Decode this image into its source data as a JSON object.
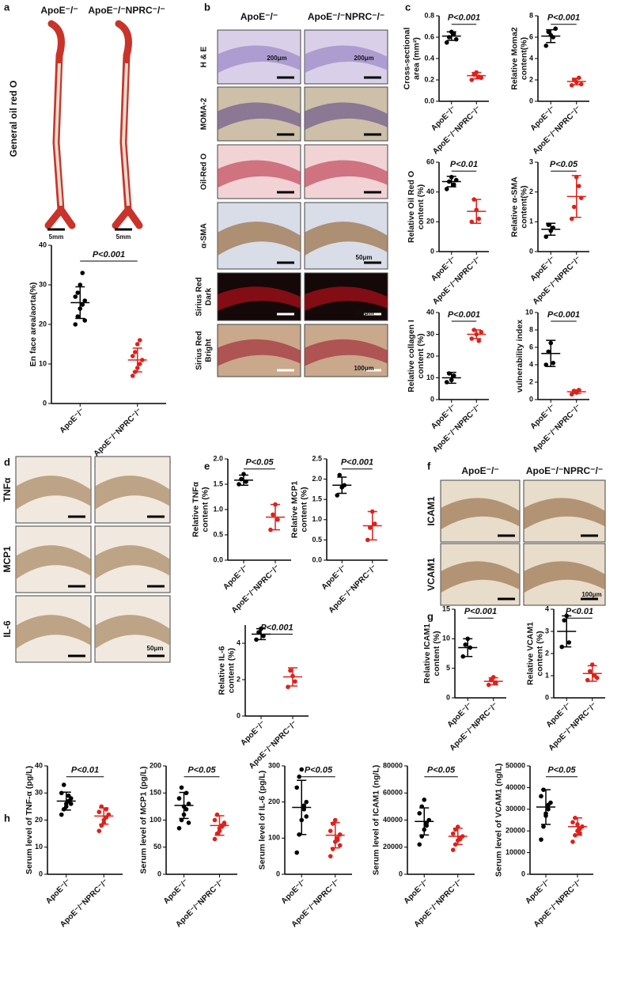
{
  "panel_letters": [
    "a",
    "b",
    "c",
    "d",
    "e",
    "f",
    "g",
    "h"
  ],
  "panel_a": {
    "columns": [
      "ApoE⁻/⁻",
      "ApoE⁻/⁻NPRC⁻/⁻"
    ],
    "row_label": "General oil red O",
    "scale_bars": [
      "5mm",
      "5mm"
    ]
  },
  "panel_b": {
    "columns": [
      "ApoE⁻/⁻",
      "ApoE⁻/⁻NPRC⁻/⁻"
    ],
    "rows": [
      [
        "H & E"
      ],
      [
        "MOMA-2"
      ],
      [
        "Oil-Red O"
      ],
      [
        "α-SMA"
      ],
      [
        "Sirius Red",
        "Dark"
      ],
      [
        "Sirius Red",
        "Bright"
      ]
    ],
    "scale_bars": [
      "200μm",
      "200μm",
      "50μm",
      "100μm",
      "100μm"
    ]
  },
  "panel_d": {
    "columns": [
      "ApoE⁻/⁻",
      "ApoE⁻/⁻NPRC⁻/⁻"
    ],
    "rows": [
      "TNFα",
      "MCP1",
      "IL-6"
    ],
    "scale_bar": "50μm"
  },
  "panel_f": {
    "columns": [
      "ApoE⁻/⁻",
      "ApoE⁻/⁻NPRC⁻/⁻"
    ],
    "rows": [
      "ICAM1",
      "VCAM1"
    ],
    "scale_bar": "100μm"
  },
  "chart_data": [
    {
      "type": "dot",
      "ylabel": [
        "En face area/aorta(%)"
      ],
      "p_label": "P<0.001",
      "categories": [
        "ApoE⁻/⁻",
        "ApoE⁻/⁻NPRC⁻/⁻"
      ],
      "groups": [
        {
          "color": "#000000",
          "values": [
            20,
            22,
            24,
            25,
            26,
            27,
            28,
            30,
            33,
            21
          ],
          "mean": 25.5,
          "sd": 4
        },
        {
          "color": "#e0201b",
          "values": [
            7,
            8,
            9,
            10,
            11,
            12,
            13,
            15,
            16
          ],
          "mean": 11,
          "sd": 3
        }
      ],
      "ylim": [
        0,
        40
      ],
      "yticks": [
        0,
        10,
        20,
        30,
        40
      ]
    },
    {
      "type": "dot",
      "ylabel": [
        "Cross-sectional",
        "area (mm²)"
      ],
      "p_label": "P<0.001",
      "categories": [
        "ApoE⁻/⁻",
        "ApoE⁻/⁻NPRC⁻/⁻"
      ],
      "groups": [
        {
          "color": "#000000",
          "values": [
            0.55,
            0.6,
            0.65,
            0.63,
            0.58
          ],
          "mean": 0.61,
          "sd": 0.04
        },
        {
          "color": "#e0201b",
          "values": [
            0.2,
            0.25,
            0.27,
            0.23,
            0.22
          ],
          "mean": 0.24,
          "sd": 0.03
        }
      ],
      "ylim": [
        0,
        0.8
      ],
      "yticks": [
        {
          "value": 0,
          "label": "0.0"
        },
        0.2,
        0.4,
        0.6,
        0.8
      ]
    },
    {
      "type": "dot",
      "ylabel": [
        "Relative Moma2",
        "content(%)"
      ],
      "p_label": "P<0.001",
      "categories": [
        "ApoE⁻/⁻",
        "ApoE⁻/⁻NPRC⁻/⁻"
      ],
      "groups": [
        {
          "color": "#000000",
          "values": [
            5.2,
            6.5,
            6.2,
            6.0,
            6.8
          ],
          "mean": 6.1,
          "sd": 0.6
        },
        {
          "color": "#e0201b",
          "values": [
            1.5,
            2.0,
            1.8,
            2.2,
            1.6
          ],
          "mean": 1.85,
          "sd": 0.3
        }
      ],
      "ylim": [
        0,
        8
      ],
      "yticks": [
        0,
        2,
        4,
        6,
        8
      ]
    },
    {
      "type": "dot",
      "ylabel": [
        "Relative Oil Red O",
        "content (%)"
      ],
      "p_label": "P<0.01",
      "categories": [
        "ApoE⁻/⁻",
        "ApoE⁻/⁻NPRC⁻/⁻"
      ],
      "groups": [
        {
          "color": "#000000",
          "values": [
            42,
            47,
            50,
            45,
            48
          ],
          "mean": 47,
          "sd": 3.5
        },
        {
          "color": "#e0201b",
          "values": [
            20,
            35,
            28,
            22
          ],
          "mean": 27,
          "sd": 8
        }
      ],
      "ylim": [
        0,
        60
      ],
      "yticks": [
        0,
        20,
        40,
        60
      ]
    },
    {
      "type": "dot",
      "ylabel": [
        "Relative α-SMA",
        "content(%)"
      ],
      "p_label": "P<0.05",
      "categories": [
        "ApoE⁻/⁻",
        "ApoE⁻/⁻NPRC⁻/⁻"
      ],
      "groups": [
        {
          "color": "#000000",
          "values": [
            0.5,
            0.9,
            0.7,
            0.8
          ],
          "mean": 0.75,
          "sd": 0.2
        },
        {
          "color": "#e0201b",
          "values": [
            1.1,
            1.5,
            2.5,
            2.2,
            1.8
          ],
          "mean": 1.85,
          "sd": 0.7
        }
      ],
      "ylim": [
        0,
        3
      ],
      "yticks": [
        0,
        1,
        2,
        3
      ]
    },
    {
      "type": "dot",
      "ylabel": [
        "Relative collagen I",
        "content (%)"
      ],
      "p_label": "P<0.001",
      "categories": [
        "ApoE⁻/⁻",
        "ApoE⁻/⁻NPRC⁻/⁻"
      ],
      "groups": [
        {
          "color": "#000000",
          "values": [
            8,
            12,
            9,
            11
          ],
          "mean": 10,
          "sd": 2.5
        },
        {
          "color": "#e0201b",
          "values": [
            28,
            32,
            30,
            27,
            31
          ],
          "mean": 30,
          "sd": 2
        }
      ],
      "ylim": [
        0,
        40
      ],
      "yticks": [
        0,
        10,
        20,
        30,
        40
      ]
    },
    {
      "type": "dot",
      "ylabel": [
        "vulnerability index"
      ],
      "p_label": "P<0.001",
      "categories": [
        "ApoE⁻/⁻",
        "ApoE⁻/⁻NPRC⁻/⁻"
      ],
      "groups": [
        {
          "color": "#000000",
          "values": [
            4,
            5.5,
            6.5,
            4.2
          ],
          "mean": 5.3,
          "sd": 1.5
        },
        {
          "color": "#e0201b",
          "values": [
            0.6,
            1,
            0.8,
            1.1
          ],
          "mean": 0.9,
          "sd": 0.2
        }
      ],
      "ylim": [
        0,
        10
      ],
      "yticks": [
        0,
        2,
        4,
        6,
        8,
        10
      ]
    },
    {
      "type": "dot",
      "ylabel": [
        "Relative TNFα",
        "content (%)"
      ],
      "p_label": "P<0.05",
      "categories": [
        "ApoE⁻/⁻",
        "ApoE⁻/⁻NPRC⁻/⁻"
      ],
      "groups": [
        {
          "color": "#000000",
          "values": [
            1.5,
            1.6,
            1.7,
            1.55
          ],
          "mean": 1.58,
          "sd": 0.1
        },
        {
          "color": "#e0201b",
          "values": [
            0.6,
            0.9,
            1.1,
            0.8
          ],
          "mean": 0.85,
          "sd": 0.25
        }
      ],
      "ylim": [
        0,
        2
      ],
      "yticks": [
        {
          "value": 0,
          "label": "0.0"
        },
        0.5,
        {
          "value": 1,
          "label": "1.0"
        },
        1.5,
        {
          "value": 2,
          "label": "2.0"
        }
      ]
    },
    {
      "type": "dot",
      "ylabel": [
        "Relative MCP1",
        "content (%)"
      ],
      "p_label": "P<0.001",
      "categories": [
        "ApoE⁻/⁻",
        "ApoE⁻/⁻NPRC⁻/⁻"
      ],
      "groups": [
        {
          "color": "#000000",
          "values": [
            1.6,
            2.1,
            1.8,
            1.85
          ],
          "mean": 1.85,
          "sd": 0.2
        },
        {
          "color": "#e0201b",
          "values": [
            0.5,
            0.8,
            1.2,
            0.9
          ],
          "mean": 0.85,
          "sd": 0.35
        }
      ],
      "ylim": [
        0,
        2.5
      ],
      "yticks": [
        {
          "value": 0,
          "label": "0.0"
        },
        0.5,
        {
          "value": 1,
          "label": "1.0"
        },
        1.5,
        {
          "value": 2,
          "label": "2.0"
        },
        2.5
      ]
    },
    {
      "type": "dot",
      "ylabel": [
        "Relative IL-6",
        "content (%)"
      ],
      "p_label": "P<0.001",
      "categories": [
        "ApoE⁻/⁻",
        "ApoE⁻/⁻NPRC⁻/⁻"
      ],
      "groups": [
        {
          "color": "#000000",
          "values": [
            4.2,
            4.6,
            4.8,
            4.4
          ],
          "mean": 4.5,
          "sd": 0.3
        },
        {
          "color": "#e0201b",
          "values": [
            1.6,
            2.5,
            2.2,
            1.9
          ],
          "mean": 2.15,
          "sd": 0.5
        }
      ],
      "ylim": [
        0,
        5
      ],
      "yticks": [
        0,
        2,
        4
      ]
    },
    {
      "type": "dot",
      "ylabel": [
        "Relative ICAM1",
        "content (%)"
      ],
      "p_label": "P<0.001",
      "categories": [
        "ApoE⁻/⁻",
        "ApoE⁻/⁻NPRC⁻/⁻"
      ],
      "groups": [
        {
          "color": "#000000",
          "values": [
            7,
            9,
            10,
            8.5
          ],
          "mean": 8.5,
          "sd": 1.5
        },
        {
          "color": "#e0201b",
          "values": [
            2.2,
            3,
            3.5,
            2.6
          ],
          "mean": 2.8,
          "sd": 0.6
        }
      ],
      "ylim": [
        0,
        15
      ],
      "yticks": [
        0,
        5,
        10,
        15
      ]
    },
    {
      "type": "dot",
      "ylabel": [
        "Relative VCAM1",
        "content (%)"
      ],
      "p_label": "P<0.01",
      "categories": [
        "ApoE⁻/⁻",
        "ApoE⁻/⁻NPRC⁻/⁻"
      ],
      "groups": [
        {
          "color": "#000000",
          "values": [
            2.3,
            3.5,
            3.7,
            2.5
          ],
          "mean": 3,
          "sd": 0.7
        },
        {
          "color": "#e0201b",
          "values": [
            0.8,
            1.2,
            1.5,
            1.0,
            0.9
          ],
          "mean": 1.1,
          "sd": 0.35
        }
      ],
      "ylim": [
        0,
        4
      ],
      "yticks": [
        0,
        1,
        2,
        3,
        4
      ]
    },
    {
      "type": "dot",
      "ylabel": [
        "Serum level of TNF-α (pg/L)"
      ],
      "p_label": "P<0.01",
      "categories": [
        "ApoE⁻/⁻",
        "ApoE⁻/⁻NPRC⁻/⁻"
      ],
      "groups": [
        {
          "color": "#000000",
          "values": [
            22,
            24,
            26,
            27,
            28,
            30,
            33,
            25,
            29,
            26
          ],
          "mean": 27,
          "sd": 3.3
        },
        {
          "color": "#e0201b",
          "values": [
            16,
            18,
            20,
            21,
            22,
            23,
            25,
            19,
            24,
            22
          ],
          "mean": 21.5,
          "sd": 3
        }
      ],
      "ylim": [
        0,
        40
      ],
      "yticks": [
        0,
        10,
        20,
        30,
        40
      ]
    },
    {
      "type": "dot",
      "ylabel": [
        "Serum level of MCP1 (pg/L)"
      ],
      "p_label": "P<0.05",
      "categories": [
        "ApoE⁻/⁻",
        "ApoE⁻/⁻NPRC⁻/⁻"
      ],
      "groups": [
        {
          "color": "#000000",
          "values": [
            85,
            100,
            110,
            120,
            130,
            140,
            160,
            125,
            150,
            95
          ],
          "mean": 127,
          "sd": 24
        },
        {
          "color": "#e0201b",
          "values": [
            65,
            75,
            85,
            90,
            95,
            100,
            110,
            80,
            88,
            92
          ],
          "mean": 90,
          "sd": 18
        }
      ],
      "ylim": [
        0,
        200
      ],
      "yticks": [
        0,
        50,
        100,
        150,
        200
      ]
    },
    {
      "type": "dot",
      "ylabel": [
        "Serum level of IL-6 (pg/L)"
      ],
      "p_label": "P<0.05",
      "categories": [
        "ApoE⁻/⁻",
        "ApoE⁻/⁻NPRC⁻/⁻"
      ],
      "groups": [
        {
          "color": "#000000",
          "values": [
            60,
            110,
            150,
            180,
            200,
            240,
            270,
            290,
            190,
            160
          ],
          "mean": 185,
          "sd": 75
        },
        {
          "color": "#e0201b",
          "values": [
            50,
            70,
            90,
            100,
            110,
            120,
            140,
            150,
            95,
            80
          ],
          "mean": 108,
          "sd": 35
        }
      ],
      "ylim": [
        0,
        300
      ],
      "yticks": [
        0,
        100,
        200,
        300
      ]
    },
    {
      "type": "dot",
      "ylabel": [
        "Serum level of ICAM1 (ng/L)"
      ],
      "p_label": "P<0.05",
      "categories": [
        "ApoE⁻/⁻",
        "ApoE⁻/⁻NPRC⁻/⁻"
      ],
      "groups": [
        {
          "color": "#000000",
          "values": [
            22000,
            28000,
            33000,
            38000,
            40000,
            45000,
            50000,
            55000,
            36000
          ],
          "mean": 39000,
          "sd": 10000
        },
        {
          "color": "#e0201b",
          "values": [
            18000,
            22000,
            25000,
            27000,
            28000,
            30000,
            33000,
            35000,
            26000
          ],
          "mean": 28000,
          "sd": 6000
        }
      ],
      "ylim": [
        0,
        80000
      ],
      "yticks": [
        0,
        20000,
        40000,
        60000,
        80000
      ]
    },
    {
      "type": "dot",
      "ylabel": [
        "Serum level of VCAM1 (ng/L)"
      ],
      "p_label": "P<0.05",
      "categories": [
        "ApoE⁻/⁻",
        "ApoE⁻/⁻NPRC⁻/⁻"
      ],
      "groups": [
        {
          "color": "#000000",
          "values": [
            16000,
            22000,
            27000,
            30000,
            33000,
            36000,
            39000,
            28000,
            32000
          ],
          "mean": 31000,
          "sd": 8000
        },
        {
          "color": "#e0201b",
          "values": [
            15000,
            18000,
            20000,
            21000,
            22000,
            24000,
            26000,
            23000,
            19000
          ],
          "mean": 22000,
          "sd": 4000
        }
      ],
      "ylim": [
        0,
        50000
      ],
      "yticks": [
        0,
        10000,
        20000,
        30000,
        40000,
        50000
      ]
    }
  ]
}
